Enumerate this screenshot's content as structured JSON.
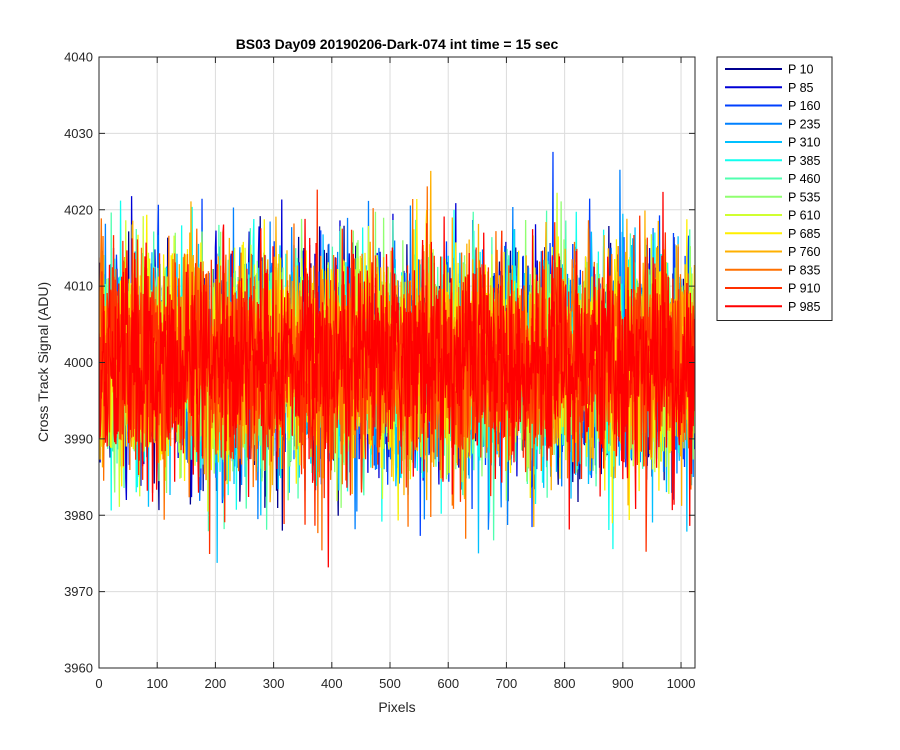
{
  "chart_data": {
    "type": "line",
    "title": "BS03 Day09 20190206-Dark-074 int time = 15 sec",
    "xlabel": "Pixels",
    "ylabel": "Cross Track Signal (ADU)",
    "xlim": [
      0,
      1024
    ],
    "ylim": [
      3960,
      4040
    ],
    "xticks": [
      0,
      100,
      200,
      300,
      400,
      500,
      600,
      700,
      800,
      900,
      1000
    ],
    "yticks": [
      3960,
      3970,
      3980,
      3990,
      4000,
      4010,
      4020,
      4030,
      4040
    ],
    "grid": true,
    "legend_position": "outside-top-right",
    "series_profile": {
      "n_points": 1024,
      "mean": 4000,
      "noise_std": 7,
      "typical_min": 3970,
      "typical_max": 4035
    },
    "series": [
      {
        "name": "P 10",
        "color": "#00008f"
      },
      {
        "name": "P 85",
        "color": "#0000d6"
      },
      {
        "name": "P 160",
        "color": "#0040ff"
      },
      {
        "name": "P 235",
        "color": "#0080ff"
      },
      {
        "name": "P 310",
        "color": "#00c0ff"
      },
      {
        "name": "P 385",
        "color": "#10ffef"
      },
      {
        "name": "P 460",
        "color": "#50ffaf"
      },
      {
        "name": "P 535",
        "color": "#90ff70"
      },
      {
        "name": "P 610",
        "color": "#d0ff30"
      },
      {
        "name": "P 685",
        "color": "#ffef00"
      },
      {
        "name": "P 760",
        "color": "#ffb000"
      },
      {
        "name": "P 835",
        "color": "#ff7000"
      },
      {
        "name": "P 910",
        "color": "#ff3000"
      },
      {
        "name": "P 985",
        "color": "#ff0000"
      }
    ]
  }
}
